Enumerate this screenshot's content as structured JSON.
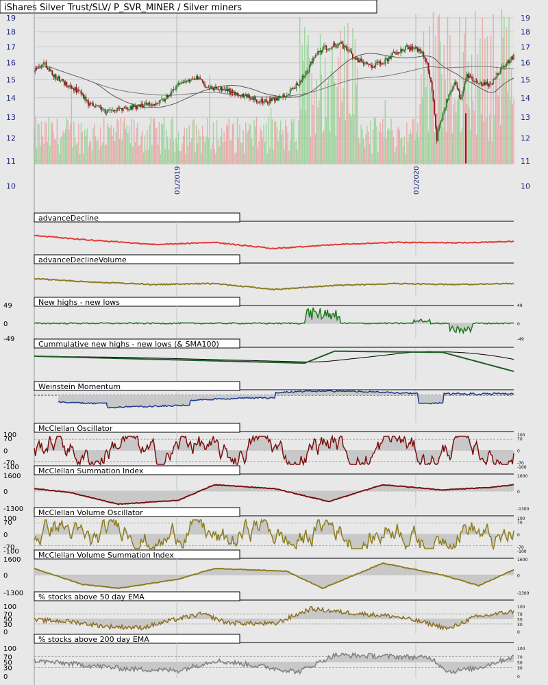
{
  "title": "iShares Silver Trust/SLV/ P_SVR_MINER / Silver miners",
  "colors": {
    "background": "#e8e8e8",
    "panel_bg": "#e6e6e6",
    "grid": "#c9c9c9",
    "axis_text": "#1a237e",
    "price_up": "#2e7d32",
    "price_down": "#8b1a1a",
    "vol_up": "#8fd18f",
    "vol_down": "#e8a0a0",
    "advance_decline": "#e53935",
    "adv_decl_volume": "#8c7d1f",
    "new_highs": "#1b7a1b",
    "cumulative": "#1b5e20",
    "weinstein": "#1a3a8f",
    "mcclellan": "#7a1010",
    "mcclellan_volume": "#8c7d1f",
    "pct50": "#8c6d1f",
    "pct200": "#808080",
    "fill": "#c8c8c8"
  },
  "chart_data": [
    {
      "type": "candlestick",
      "title": "iShares Silver Trust/SLV/ P_SVR_MINER / Silver miners",
      "y_ticks": [
        10,
        11,
        12,
        13,
        14,
        15,
        16,
        17,
        18,
        19
      ],
      "y_scale": "log",
      "ylim": [
        10.2,
        19.4
      ],
      "x_labels": [
        "01/2019",
        "01/2020"
      ],
      "bars": 350,
      "price_path": [
        [
          0,
          15.6
        ],
        [
          8,
          16.0
        ],
        [
          15,
          15.3
        ],
        [
          30,
          14.6
        ],
        [
          40,
          14.2
        ],
        [
          45,
          13.7
        ],
        [
          60,
          13.3
        ],
        [
          75,
          13.4
        ],
        [
          90,
          13.6
        ],
        [
          105,
          13.8
        ],
        [
          110,
          14.0
        ],
        [
          115,
          14.4
        ],
        [
          125,
          14.9
        ],
        [
          135,
          15.1
        ],
        [
          145,
          14.6
        ],
        [
          160,
          14.4
        ],
        [
          175,
          14.1
        ],
        [
          190,
          13.8
        ],
        [
          200,
          13.9
        ],
        [
          210,
          14.2
        ],
        [
          220,
          14.8
        ],
        [
          228,
          15.6
        ],
        [
          232,
          16.3
        ],
        [
          240,
          16.9
        ],
        [
          255,
          17.2
        ],
        [
          268,
          16.2
        ],
        [
          280,
          15.8
        ],
        [
          290,
          16.0
        ],
        [
          300,
          16.6
        ],
        [
          310,
          17.0
        ],
        [
          320,
          16.8
        ],
        [
          325,
          16.4
        ],
        [
          330,
          15.0
        ],
        [
          335,
          12.0
        ],
        [
          338,
          12.8
        ],
        [
          345,
          14.2
        ],
        [
          350,
          14.8
        ],
        [
          355,
          13.9
        ],
        [
          360,
          15.2
        ],
        [
          370,
          14.8
        ],
        [
          380,
          14.7
        ],
        [
          390,
          15.8
        ],
        [
          399,
          16.4
        ]
      ],
      "moving_averages": [
        "SMA50",
        "SMA200"
      ]
    },
    {
      "type": "line",
      "title": "advanceDecline",
      "series_path": [
        [
          0,
          0.25
        ],
        [
          40,
          0.45
        ],
        [
          100,
          0.7
        ],
        [
          150,
          0.6
        ],
        [
          200,
          0.9
        ],
        [
          250,
          0.7
        ],
        [
          300,
          0.6
        ],
        [
          350,
          0.62
        ],
        [
          399,
          0.55
        ]
      ]
    },
    {
      "type": "line",
      "title": "advanceDeclineVolume",
      "series_path": [
        [
          0,
          0.3
        ],
        [
          40,
          0.45
        ],
        [
          100,
          0.6
        ],
        [
          150,
          0.55
        ],
        [
          200,
          0.85
        ],
        [
          250,
          0.65
        ],
        [
          300,
          0.55
        ],
        [
          350,
          0.6
        ],
        [
          399,
          0.55
        ]
      ]
    },
    {
      "type": "line",
      "title": "New highs - new lows",
      "y_ticks": [
        49,
        0,
        -49
      ],
      "ylim": [
        -60,
        60
      ]
    },
    {
      "type": "line",
      "title": "Cummulative new highs - new lows (& SMA100)"
    },
    {
      "type": "line",
      "title": "Weinstein Momentum"
    },
    {
      "type": "line",
      "title": "McClellan Oscillator",
      "y_ticks": [
        100,
        70,
        0,
        -70,
        -100
      ],
      "ylim": [
        -110,
        110
      ]
    },
    {
      "type": "line",
      "title": "McClellan Summation Index",
      "y_ticks": [
        1600,
        0,
        -1300
      ],
      "ylim": [
        -1500,
        1800
      ]
    },
    {
      "type": "line",
      "title": "McClellan Volume Oscillator",
      "y_ticks": [
        100,
        70,
        0,
        -70,
        -100
      ],
      "ylim": [
        -110,
        110
      ]
    },
    {
      "type": "line",
      "title": "McClellan Volume Summation Index",
      "y_ticks": [
        1600,
        0,
        -1300
      ],
      "ylim": [
        -1500,
        1800
      ]
    },
    {
      "type": "line",
      "title": "% stocks above 50 day EMA",
      "y_ticks": [
        100,
        70,
        50,
        30,
        0
      ],
      "ylim": [
        0,
        100
      ]
    },
    {
      "type": "line",
      "title": "% stocks above 200 day EMA",
      "y_ticks": [
        100,
        70,
        50,
        30,
        0
      ],
      "ylim": [
        0,
        100
      ]
    }
  ]
}
